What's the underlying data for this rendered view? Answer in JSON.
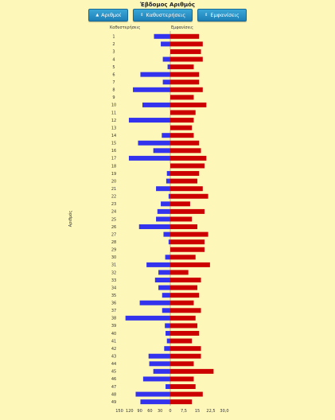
{
  "title": "Έβδομος Αριθμός",
  "toolbar": {
    "buttons": [
      {
        "icon": "sort-up-icon",
        "glyph": "▲",
        "label": "Αριθμοί"
      },
      {
        "icon": "sort-icon",
        "glyph": "⇕",
        "label": "Καθυστερήσεις"
      },
      {
        "icon": "sort-icon",
        "glyph": "⇕",
        "label": "Εμφανίσεις"
      }
    ]
  },
  "colors": {
    "delays": "#3333ee",
    "appearances": "#cc0000",
    "background": "#fdf7ba"
  },
  "chart_data": {
    "type": "bar",
    "orientation": "horizontal",
    "ylabel": "Αριθμός",
    "categories": [
      "1",
      "2",
      "3",
      "4",
      "5",
      "6",
      "7",
      "8",
      "9",
      "10",
      "11",
      "12",
      "13",
      "14",
      "15",
      "16",
      "17",
      "18",
      "19",
      "20",
      "21",
      "22",
      "23",
      "24",
      "25",
      "26",
      "27",
      "28",
      "29",
      "30",
      "31",
      "32",
      "33",
      "34",
      "35",
      "36",
      "37",
      "38",
      "39",
      "40",
      "41",
      "42",
      "43",
      "44",
      "45",
      "46",
      "47",
      "48",
      "49"
    ],
    "left_axis": {
      "label": "Καθυστερήσεις",
      "ticks": [
        "150",
        "120",
        "90",
        "60",
        "30",
        "0"
      ],
      "range": [
        0,
        150
      ]
    },
    "right_axis": {
      "label": "Εμφανίσεις",
      "ticks": [
        "0",
        "7,5",
        "15",
        "22,5",
        "30,0"
      ],
      "range": [
        0,
        30
      ]
    },
    "series": [
      {
        "name": "Καθυστερήσεις",
        "side": "left",
        "values": [
          48,
          28,
          0,
          22,
          8,
          88,
          22,
          110,
          0,
          82,
          0,
          122,
          0,
          25,
          95,
          50,
          122,
          0,
          10,
          12,
          42,
          5,
          28,
          38,
          42,
          92,
          20,
          5,
          0,
          15,
          70,
          35,
          45,
          35,
          24,
          90,
          24,
          132,
          16,
          14,
          10,
          18,
          64,
          62,
          50,
          80,
          14,
          102,
          88
        ]
      },
      {
        "name": "Εμφανίσεις",
        "side": "right",
        "values": [
          16,
          18,
          17,
          18,
          13,
          16,
          16,
          18,
          13,
          20,
          14,
          13,
          12,
          13,
          16,
          17,
          20,
          19,
          16,
          15,
          18,
          21,
          11,
          19,
          12,
          15,
          21,
          19,
          19,
          14,
          22,
          10,
          17,
          15,
          16,
          13,
          17,
          14,
          15,
          16,
          12,
          17,
          17,
          13,
          24,
          13,
          14,
          18,
          12
        ]
      }
    ]
  }
}
